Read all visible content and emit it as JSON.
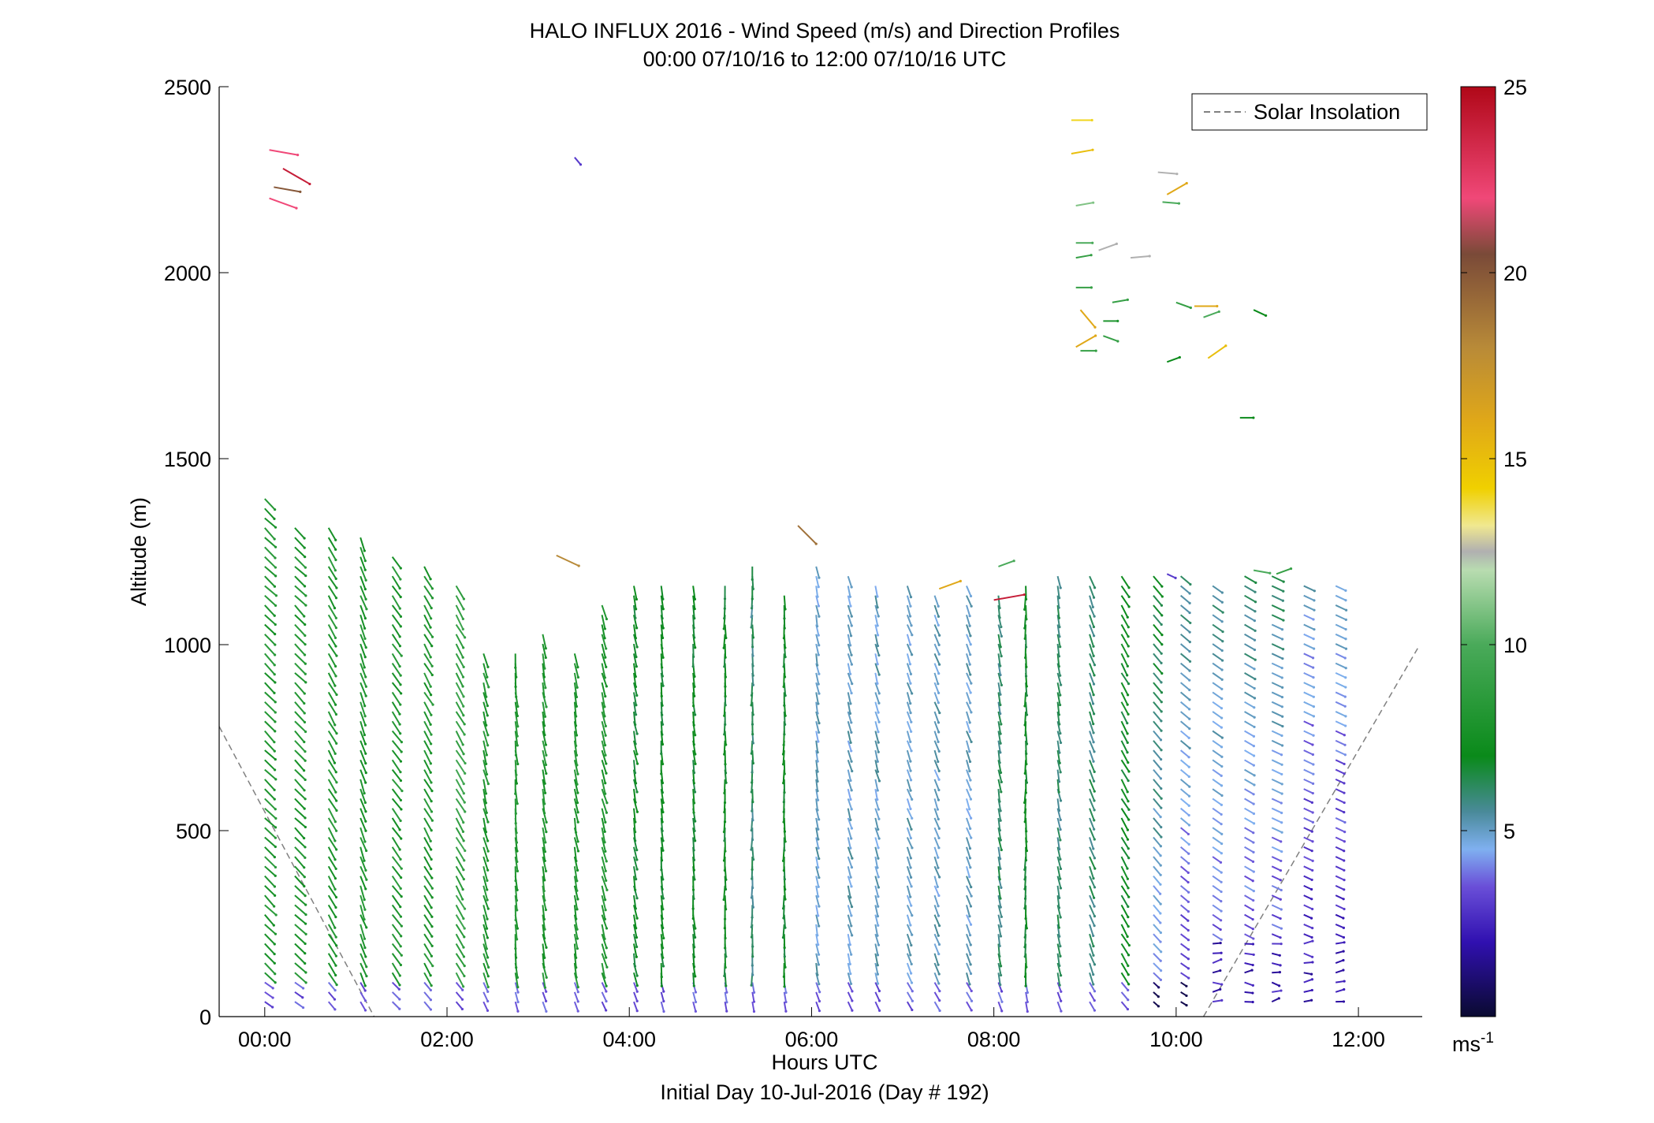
{
  "chart_data": {
    "type": "scatter",
    "title": "HALO INFLUX 2016 - Wind Speed (m/s) and Direction Profiles",
    "subtitle": "00:00 07/10/16 to 12:00 07/10/16  UTC",
    "xlabel": "Hours UTC",
    "xlabel_sub": "Initial Day 10-Jul-2016 (Day # 192)",
    "ylabel": "Altitude (m)",
    "x_range_hours": [
      -0.5,
      12.7
    ],
    "ylim": [
      0,
      2500
    ],
    "x_ticks": [
      {
        "value": 0,
        "label": "00:00"
      },
      {
        "value": 2,
        "label": "02:00"
      },
      {
        "value": 4,
        "label": "04:00"
      },
      {
        "value": 6,
        "label": "06:00"
      },
      {
        "value": 8,
        "label": "08:00"
      },
      {
        "value": 10,
        "label": "10:00"
      },
      {
        "value": 12,
        "label": "12:00"
      }
    ],
    "y_ticks": [
      0,
      500,
      1000,
      1500,
      2000,
      2500
    ],
    "grid": false,
    "legend": {
      "placement": "top-right",
      "entries": [
        {
          "label": "Solar Insolation",
          "style": "dashed",
          "color": "#808080"
        }
      ]
    },
    "colorbar": {
      "range": [
        0,
        25
      ],
      "ticks": [
        5,
        10,
        15,
        20,
        25
      ],
      "unit_label": "ms",
      "unit_exp": "-1",
      "stops": [
        {
          "v": 0,
          "c": "#0a0a30"
        },
        {
          "v": 2,
          "c": "#3010b0"
        },
        {
          "v": 3.5,
          "c": "#6a4fd8"
        },
        {
          "v": 4.5,
          "c": "#7fb0f0"
        },
        {
          "v": 5.5,
          "c": "#4a8a9a"
        },
        {
          "v": 7,
          "c": "#0a8a1a"
        },
        {
          "v": 10,
          "c": "#4aaa5a"
        },
        {
          "v": 12,
          "c": "#b8dcb0"
        },
        {
          "v": 12.5,
          "c": "#b0b0b0"
        },
        {
          "v": 13.2,
          "c": "#f0e890"
        },
        {
          "v": 14.2,
          "c": "#f0d000"
        },
        {
          "v": 16,
          "c": "#e0a818"
        },
        {
          "v": 18,
          "c": "#b88a38"
        },
        {
          "v": 20.5,
          "c": "#7a4a38"
        },
        {
          "v": 22,
          "c": "#f04878"
        },
        {
          "v": 25,
          "c": "#b00818"
        }
      ]
    },
    "solar_insolation_segments": [
      {
        "x": [
          -0.5,
          1.2
        ],
        "y": [
          780,
          0
        ]
      },
      {
        "x": [
          10.3,
          12.65
        ],
        "y": [
          0,
          990
        ]
      }
    ],
    "profiles": [
      {
        "t": 0.0,
        "top": 1400,
        "spd": 8,
        "dir": 135
      },
      {
        "t": 0.33,
        "top": 1330,
        "spd": 8,
        "dir": 135
      },
      {
        "t": 0.7,
        "top": 1330,
        "spd": 8,
        "dir": 150
      },
      {
        "t": 1.05,
        "top": 1290,
        "spd": 8,
        "dir": 160
      },
      {
        "t": 1.4,
        "top": 1250,
        "spd": 8,
        "dir": 145
      },
      {
        "t": 1.75,
        "top": 1210,
        "spd": 8,
        "dir": 150
      },
      {
        "t": 2.1,
        "top": 1170,
        "spd": 9,
        "dir": 150
      },
      {
        "t": 2.4,
        "top": 990,
        "spd": 8,
        "dir": 165
      },
      {
        "t": 2.75,
        "top": 1000,
        "spd": 8,
        "dir": 175
      },
      {
        "t": 3.05,
        "top": 1050,
        "spd": 8,
        "dir": 170
      },
      {
        "t": 3.4,
        "top": 1000,
        "spd": 8,
        "dir": 170
      },
      {
        "t": 3.7,
        "top": 1130,
        "spd": 8,
        "dir": 165
      },
      {
        "t": 4.05,
        "top": 1160,
        "spd": 7,
        "dir": 170
      },
      {
        "t": 4.35,
        "top": 1170,
        "spd": 7,
        "dir": 175
      },
      {
        "t": 4.7,
        "top": 1170,
        "spd": 7,
        "dir": 175
      },
      {
        "t": 5.05,
        "top": 1170,
        "spd": 7,
        "dir": 180
      },
      {
        "t": 5.35,
        "top": 1210,
        "spd": 6,
        "dir": 180
      },
      {
        "t": 5.7,
        "top": 1150,
        "spd": 7,
        "dir": 180
      },
      {
        "t": 6.05,
        "top": 1210,
        "spd": 5,
        "dir": 170
      },
      {
        "t": 6.4,
        "top": 1200,
        "spd": 5,
        "dir": 165
      },
      {
        "t": 6.7,
        "top": 1160,
        "spd": 5,
        "dir": 165
      },
      {
        "t": 7.05,
        "top": 1160,
        "spd": 5,
        "dir": 160
      },
      {
        "t": 7.35,
        "top": 1150,
        "spd": 5,
        "dir": 160
      },
      {
        "t": 7.7,
        "top": 1160,
        "spd": 5,
        "dir": 160
      },
      {
        "t": 8.05,
        "top": 1150,
        "spd": 6,
        "dir": 170
      },
      {
        "t": 8.35,
        "top": 1170,
        "spd": 7,
        "dir": 180
      },
      {
        "t": 8.7,
        "top": 1200,
        "spd": 6,
        "dir": 170
      },
      {
        "t": 9.05,
        "top": 1200,
        "spd": 6,
        "dir": 160
      },
      {
        "t": 9.4,
        "top": 1200,
        "spd": 7,
        "dir": 150
      },
      {
        "t": 9.75,
        "top": 1190,
        "spd": 7,
        "dir": 140
      },
      {
        "t": 10.05,
        "top": 1190,
        "spd": 6,
        "dir": 130
      },
      {
        "t": 10.4,
        "top": 1170,
        "spd": 6,
        "dir": 125
      },
      {
        "t": 10.75,
        "top": 1190,
        "spd": 6,
        "dir": 120
      },
      {
        "t": 11.05,
        "top": 1190,
        "spd": 6,
        "dir": 115
      },
      {
        "t": 11.4,
        "top": 1170,
        "spd": 5,
        "dir": 115
      },
      {
        "t": 11.75,
        "top": 1160,
        "spd": 5,
        "dir": 115
      }
    ],
    "isolated_vectors": [
      {
        "t": 0.05,
        "z": 2330,
        "spd": 22,
        "dir": 100
      },
      {
        "t": 0.2,
        "z": 2280,
        "spd": 24,
        "dir": 120
      },
      {
        "t": 0.1,
        "z": 2230,
        "spd": 20,
        "dir": 100
      },
      {
        "t": 0.05,
        "z": 2200,
        "spd": 22,
        "dir": 110
      },
      {
        "t": 3.4,
        "z": 2310,
        "spd": 3,
        "dir": 140
      },
      {
        "t": 3.2,
        "z": 1240,
        "spd": 18,
        "dir": 115
      },
      {
        "t": 5.85,
        "z": 1320,
        "spd": 19,
        "dir": 135
      },
      {
        "t": 7.4,
        "z": 1150,
        "spd": 16,
        "dir": 70
      },
      {
        "t": 8.0,
        "z": 1120,
        "spd": 24,
        "dir": 80
      },
      {
        "t": 8.05,
        "z": 1210,
        "spd": 10,
        "dir": 70
      },
      {
        "t": 8.85,
        "z": 2410,
        "spd": 14,
        "dir": 90
      },
      {
        "t": 8.85,
        "z": 2320,
        "spd": 15,
        "dir": 80
      },
      {
        "t": 8.9,
        "z": 2180,
        "spd": 11,
        "dir": 80
      },
      {
        "t": 8.9,
        "z": 2080,
        "spd": 10,
        "dir": 90
      },
      {
        "t": 8.9,
        "z": 2040,
        "spd": 9,
        "dir": 80
      },
      {
        "t": 9.15,
        "z": 2060,
        "spd": 12.5,
        "dir": 70
      },
      {
        "t": 9.5,
        "z": 2040,
        "spd": 12.5,
        "dir": 85
      },
      {
        "t": 8.9,
        "z": 1960,
        "spd": 9,
        "dir": 90
      },
      {
        "t": 8.95,
        "z": 1900,
        "spd": 16,
        "dir": 140
      },
      {
        "t": 9.2,
        "z": 1870,
        "spd": 8,
        "dir": 90
      },
      {
        "t": 9.3,
        "z": 1920,
        "spd": 9,
        "dir": 80
      },
      {
        "t": 8.9,
        "z": 1800,
        "spd": 16,
        "dir": 60
      },
      {
        "t": 8.95,
        "z": 1790,
        "spd": 9,
        "dir": 90
      },
      {
        "t": 9.2,
        "z": 1830,
        "spd": 9,
        "dir": 110
      },
      {
        "t": 9.8,
        "z": 2270,
        "spd": 12.5,
        "dir": 95
      },
      {
        "t": 9.9,
        "z": 2210,
        "spd": 16,
        "dir": 60
      },
      {
        "t": 9.85,
        "z": 2190,
        "spd": 10,
        "dir": 95
      },
      {
        "t": 10.0,
        "z": 1920,
        "spd": 9,
        "dir": 110
      },
      {
        "t": 10.2,
        "z": 1910,
        "spd": 16,
        "dir": 90
      },
      {
        "t": 10.3,
        "z": 1880,
        "spd": 10,
        "dir": 70
      },
      {
        "t": 10.85,
        "z": 1900,
        "spd": 7,
        "dir": 115
      },
      {
        "t": 9.9,
        "z": 1760,
        "spd": 7,
        "dir": 70
      },
      {
        "t": 10.35,
        "z": 1770,
        "spd": 15,
        "dir": 55
      },
      {
        "t": 10.7,
        "z": 1610,
        "spd": 7,
        "dir": 90
      },
      {
        "t": 9.9,
        "z": 1190,
        "spd": 3,
        "dir": 115
      },
      {
        "t": 11.1,
        "z": 1190,
        "spd": 9,
        "dir": 70
      },
      {
        "t": 10.85,
        "z": 1200,
        "spd": 10,
        "dir": 100
      }
    ]
  }
}
